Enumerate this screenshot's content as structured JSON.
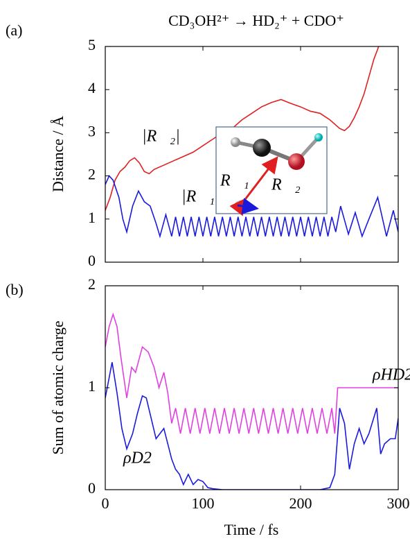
{
  "chart_data": [
    {
      "type": "line",
      "panel": "(a)",
      "title": "CD₃OH²⁺ → HD₂⁺ + CDO⁺",
      "ylabel": "Distance / Å",
      "xlim": [
        0,
        300
      ],
      "xticks": [
        0,
        100,
        200,
        300
      ],
      "ylim": [
        0,
        5
      ],
      "yticks": [
        0,
        1,
        2,
        3,
        4,
        5
      ],
      "inset_labels": [
        "R⃗₁",
        "R⃗₂"
      ],
      "series": [
        {
          "name": "|R⃗₂|",
          "color": "#e02020",
          "x": [
            0,
            5,
            10,
            15,
            20,
            25,
            30,
            35,
            40,
            45,
            50,
            60,
            70,
            80,
            90,
            100,
            110,
            120,
            130,
            140,
            150,
            160,
            170,
            180,
            190,
            200,
            210,
            220,
            230,
            240,
            245,
            250,
            255,
            260,
            265,
            270,
            275,
            280
          ],
          "values": [
            1.2,
            1.5,
            1.9,
            2.1,
            2.2,
            2.35,
            2.42,
            2.3,
            2.1,
            2.05,
            2.15,
            2.25,
            2.35,
            2.45,
            2.55,
            2.7,
            2.85,
            3.0,
            3.1,
            3.3,
            3.45,
            3.6,
            3.7,
            3.77,
            3.68,
            3.6,
            3.5,
            3.45,
            3.3,
            3.1,
            3.05,
            3.15,
            3.35,
            3.6,
            3.9,
            4.3,
            4.7,
            5.0
          ]
        },
        {
          "name": "|R⃗₁|",
          "color": "#1a1adc",
          "x": [
            0,
            4,
            8,
            14,
            18,
            22,
            28,
            34,
            40,
            46,
            52,
            56,
            62,
            68,
            72,
            76,
            80,
            84,
            88,
            92,
            96,
            100,
            104,
            108,
            112,
            116,
            120,
            124,
            128,
            132,
            136,
            140,
            144,
            148,
            152,
            156,
            160,
            164,
            168,
            172,
            176,
            180,
            184,
            188,
            192,
            196,
            200,
            204,
            208,
            212,
            216,
            220,
            224,
            228,
            232,
            236,
            241,
            249,
            256,
            263,
            270,
            279,
            288,
            295,
            300
          ],
          "values": [
            1.8,
            2.0,
            1.9,
            1.5,
            1.0,
            0.7,
            1.3,
            1.65,
            1.4,
            1.3,
            0.9,
            0.6,
            1.1,
            0.6,
            1.05,
            0.6,
            1.05,
            0.6,
            1.05,
            0.6,
            1.05,
            0.6,
            1.05,
            0.6,
            1.05,
            0.6,
            1.05,
            0.6,
            1.05,
            0.6,
            1.05,
            0.6,
            1.05,
            0.6,
            1.05,
            0.6,
            1.05,
            0.6,
            1.05,
            0.6,
            1.05,
            0.6,
            1.05,
            0.6,
            1.05,
            0.6,
            1.05,
            0.6,
            1.05,
            0.6,
            1.05,
            0.6,
            1.05,
            0.6,
            1.05,
            0.7,
            1.3,
            0.65,
            1.15,
            0.6,
            1.0,
            1.5,
            0.6,
            1.2,
            0.7
          ]
        }
      ]
    },
    {
      "type": "line",
      "panel": "(b)",
      "ylabel": "Sum of atomic charge",
      "xlabel": "Time / fs",
      "xlim": [
        0,
        300
      ],
      "xticks": [
        0,
        100,
        200,
        300
      ],
      "ylim": [
        0,
        2
      ],
      "yticks": [
        0,
        1,
        2
      ],
      "series": [
        {
          "name": "ρHD2",
          "color": "#e040e0",
          "x": [
            0,
            4,
            8,
            12,
            16,
            22,
            27,
            31,
            38,
            44,
            50,
            55,
            60,
            64,
            68,
            72,
            77,
            82,
            87,
            92,
            97,
            102,
            107,
            112,
            117,
            122,
            127,
            132,
            137,
            142,
            147,
            152,
            157,
            162,
            167,
            172,
            177,
            182,
            187,
            192,
            197,
            202,
            207,
            212,
            217,
            222,
            227,
            232,
            235,
            238,
            300
          ],
          "values": [
            1.4,
            1.6,
            1.72,
            1.6,
            1.3,
            0.9,
            1.2,
            1.15,
            1.4,
            1.35,
            1.2,
            1.0,
            1.15,
            0.95,
            0.65,
            0.8,
            0.55,
            0.8,
            0.55,
            0.8,
            0.55,
            0.8,
            0.55,
            0.8,
            0.55,
            0.8,
            0.55,
            0.8,
            0.55,
            0.8,
            0.55,
            0.8,
            0.55,
            0.8,
            0.55,
            0.8,
            0.55,
            0.8,
            0.55,
            0.8,
            0.55,
            0.8,
            0.55,
            0.8,
            0.55,
            0.8,
            0.55,
            0.8,
            0.55,
            1.0,
            1.0
          ]
        },
        {
          "name": "ρD2",
          "color": "#1a1adc",
          "x": [
            0,
            7,
            12,
            17,
            22,
            28,
            33,
            38,
            42,
            47,
            52,
            56,
            60,
            64,
            68,
            72,
            76,
            80,
            85,
            90,
            95,
            100,
            105,
            110,
            120,
            140,
            160,
            180,
            200,
            220,
            230,
            235,
            240,
            245,
            250,
            255,
            260,
            265,
            270,
            278,
            282,
            286,
            292,
            297,
            300
          ],
          "values": [
            0.9,
            1.25,
            0.95,
            0.6,
            0.4,
            0.55,
            0.75,
            0.92,
            0.9,
            0.7,
            0.5,
            0.55,
            0.6,
            0.45,
            0.3,
            0.2,
            0.15,
            0.05,
            0.15,
            0.05,
            0.1,
            0.08,
            0.02,
            0.01,
            0,
            0,
            0,
            0,
            0,
            0,
            0.02,
            0.15,
            0.8,
            0.65,
            0.2,
            0.45,
            0.6,
            0.45,
            0.55,
            0.8,
            0.35,
            0.45,
            0.5,
            0.5,
            0.7
          ]
        }
      ]
    }
  ]
}
